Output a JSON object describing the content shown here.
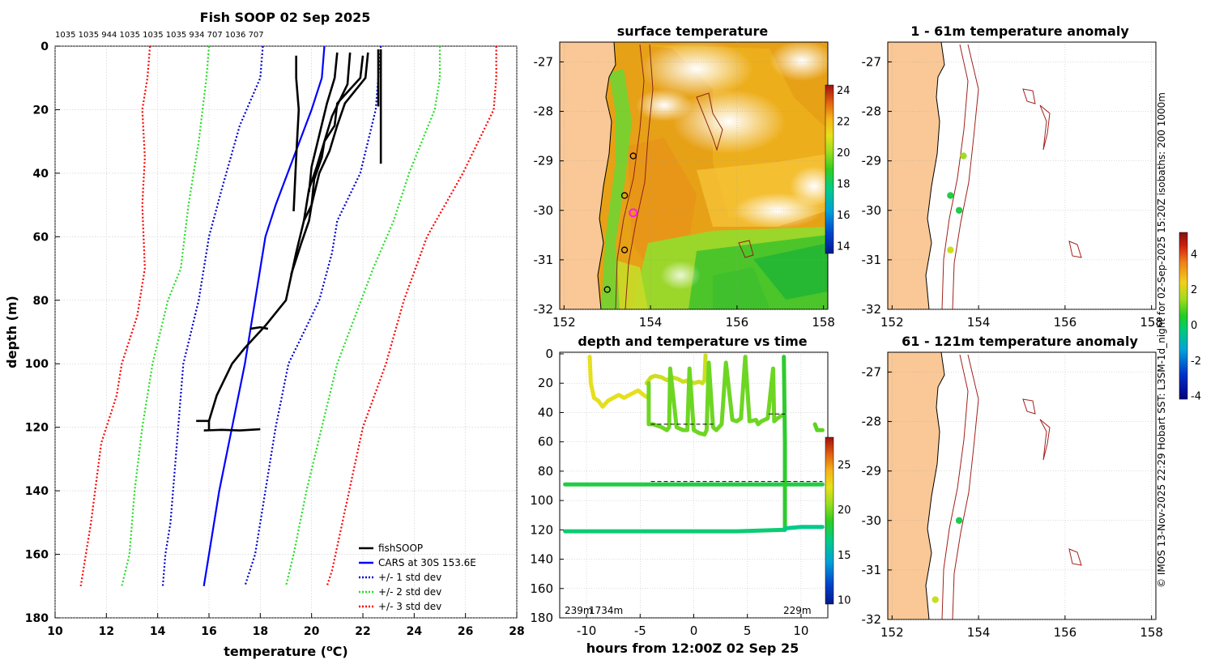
{
  "figure": {
    "credit": "© IMOS 13-Nov-2025 22:29 Hobart SST: L3SM-1d_night for 02-Sep-2025 15:20Z isobaths: 200  1000m"
  },
  "colors": {
    "profile": "#000000",
    "cars": "#0000ff",
    "std1": "#0000cc",
    "std2": "#22dd22",
    "std3": "#ff0000",
    "land": "#f9c896",
    "track": "#a0201a"
  },
  "chart_data": [
    {
      "id": "profile",
      "type": "line",
      "title": "Fish SOOP 02 Sep 2025",
      "top_labels": "1035 1035 944 1035 1035 1035 934 707 1036 707",
      "xlabel": "temperature (",
      "xlabel_unit": "o",
      "xlabel_end": "C)",
      "ylabel": "depth (m)",
      "xlim": [
        10,
        28
      ],
      "ylim": [
        180,
        0
      ],
      "xticks": [
        "10",
        "12",
        "14",
        "16",
        "18",
        "20",
        "22",
        "24",
        "26",
        "28"
      ],
      "yticks": [
        "0",
        "20",
        "40",
        "60",
        "80",
        "100",
        "120",
        "140",
        "160",
        "180"
      ],
      "legend": [
        {
          "label": "fishSOOP",
          "color": "#000000",
          "style": "solid"
        },
        {
          "label": "CARS at 30S 153.6E",
          "color": "#0000ff",
          "style": "solid"
        },
        {
          "label": "+/- 1 std dev",
          "color": "#0000cc",
          "style": "dotted"
        },
        {
          "label": "+/- 2 std dev",
          "color": "#22dd22",
          "style": "dotted"
        },
        {
          "label": "+/- 3 std dev",
          "color": "#ff0000",
          "style": "dotted"
        }
      ],
      "series": [
        {
          "name": "CARS at 30S 153.6E",
          "color": "#0000ff",
          "style": "solid",
          "x": [
            20.5,
            20.4,
            20.0,
            19.3,
            18.6,
            18.2,
            18.0,
            17.8,
            17.4,
            16.9,
            16.4,
            16.0,
            15.8
          ],
          "y": [
            0,
            10,
            20,
            35,
            50,
            60,
            70,
            80,
            100,
            120,
            140,
            160,
            170
          ]
        },
        {
          "name": "-1 std",
          "color": "#0000cc",
          "style": "dotted",
          "x": [
            18.1,
            18.0,
            17.2,
            16.5,
            16.0,
            15.6,
            15.0,
            14.8,
            14.6,
            14.5,
            14.3,
            14.2
          ],
          "y": [
            0,
            10,
            25,
            45,
            60,
            80,
            100,
            120,
            140,
            150,
            160,
            170
          ]
        },
        {
          "name": "+1 std",
          "color": "#0000cc",
          "style": "dotted",
          "x": [
            22.7,
            22.6,
            22.5,
            21.9,
            21.0,
            20.8,
            20.3,
            19.7,
            19.1,
            18.6,
            18.2,
            17.8,
            17.4
          ],
          "y": [
            0,
            10,
            20,
            40,
            55,
            65,
            80,
            90,
            100,
            120,
            140,
            160,
            170
          ]
        },
        {
          "name": "-2 std",
          "color": "#22dd22",
          "style": "dotted",
          "x": [
            16.0,
            15.9,
            15.6,
            15.2,
            14.9,
            14.4,
            13.8,
            13.4,
            13.1,
            12.9,
            12.6
          ],
          "y": [
            0,
            10,
            30,
            50,
            70,
            80,
            100,
            120,
            140,
            160,
            170
          ]
        },
        {
          "name": "+2 std",
          "color": "#22dd22",
          "style": "dotted",
          "x": [
            25.0,
            25.0,
            24.8,
            23.8,
            23.2,
            22.4,
            21.7,
            21.0,
            20.4,
            19.8,
            19.3,
            19.0
          ],
          "y": [
            0,
            10,
            20,
            40,
            55,
            70,
            85,
            100,
            120,
            140,
            160,
            170
          ]
        },
        {
          "name": "-3 std",
          "color": "#ff0000",
          "style": "dotted",
          "x": [
            13.7,
            13.6,
            13.4,
            13.5,
            13.4,
            13.5,
            13.2,
            12.6,
            12.4,
            11.8,
            11.4,
            11.0
          ],
          "y": [
            0,
            10,
            20,
            35,
            50,
            70,
            85,
            100,
            110,
            125,
            150,
            170
          ]
        },
        {
          "name": "+3 std",
          "color": "#ff0000",
          "style": "dotted",
          "x": [
            27.2,
            27.2,
            27.1,
            25.9,
            24.5,
            23.6,
            22.9,
            22.0,
            21.2,
            20.8,
            20.6
          ],
          "y": [
            0,
            10,
            20,
            40,
            60,
            80,
            100,
            120,
            150,
            165,
            170
          ]
        },
        {
          "name": "fishSOOP",
          "color": "#000000",
          "style": "solid",
          "x": [
            22.0,
            21.9,
            21.0,
            20.9,
            20.5,
            20.4,
            20.1,
            20.0,
            19.7,
            19.4,
            19.0,
            18.2,
            17.4,
            16.9,
            16.3,
            16.0,
            16.0
          ],
          "y": [
            3,
            10,
            18,
            25,
            30,
            35,
            42,
            50,
            55,
            65,
            80,
            88,
            95,
            100,
            110,
            118,
            121
          ]
        },
        {
          "name": "fishSOOP",
          "color": "#000000",
          "style": "solid",
          "x": [
            22.2,
            22.1,
            21.3,
            21.0,
            20.7,
            20.3,
            20.0,
            19.9,
            19.6,
            19.2
          ],
          "y": [
            2,
            10,
            18,
            25,
            33,
            40,
            50,
            55,
            62,
            72
          ]
        },
        {
          "name": "fishSOOP",
          "color": "#000000",
          "style": "solid",
          "x": [
            21.5,
            21.4,
            20.8,
            20.5,
            20.2,
            19.9,
            19.7
          ],
          "y": [
            2,
            12,
            22,
            30,
            38,
            45,
            55
          ]
        },
        {
          "name": "fishSOOP",
          "color": "#000000",
          "style": "solid",
          "x": [
            21.0,
            20.9,
            20.6,
            20.3,
            20.0,
            19.9
          ],
          "y": [
            2,
            10,
            18,
            28,
            38,
            46
          ]
        },
        {
          "name": "fishSOOP",
          "color": "#000000",
          "style": "solid",
          "x": [
            19.4,
            19.4,
            19.5,
            19.4,
            19.3
          ],
          "y": [
            3,
            10,
            20,
            35,
            52
          ]
        },
        {
          "name": "fishSOOP",
          "color": "#000000",
          "style": "solid",
          "x": [
            22.7,
            22.7,
            22.7,
            22.7
          ],
          "y": [
            1,
            10,
            25,
            37
          ]
        },
        {
          "name": "fishSOOP",
          "color": "#000000",
          "style": "solid",
          "x": [
            22.6,
            22.6,
            22.6
          ],
          "y": [
            1,
            10,
            19
          ]
        },
        {
          "name": "fishSOOP",
          "color": "#000000",
          "style": "solid",
          "x": [
            15.8,
            16.5,
            17.2,
            18.0
          ],
          "y": [
            121,
            120.8,
            121,
            120.6
          ]
        },
        {
          "name": "fishSOOP",
          "color": "#000000",
          "style": "solid",
          "x": [
            17.6,
            18.0,
            18.3
          ],
          "y": [
            89,
            88.5,
            89
          ]
        },
        {
          "name": "fishSOOP",
          "color": "#000000",
          "style": "solid",
          "x": [
            15.5,
            16.0
          ],
          "y": [
            118,
            118
          ]
        }
      ]
    },
    {
      "id": "sst",
      "type": "heatmap",
      "title": "surface temperature",
      "xlim": [
        151.9,
        158.1
      ],
      "ylim": [
        -32,
        -26.6
      ],
      "xticks": [
        "152",
        "154",
        "156",
        "158"
      ],
      "yticks": [
        "-27",
        "-28",
        "-29",
        "-30",
        "-31",
        "-32"
      ],
      "colorbar": {
        "min": 13.5,
        "max": 24.3,
        "ticks": [
          "14",
          "16",
          "18",
          "20",
          "22",
          "24"
        ]
      },
      "stations": [
        [
          153.6,
          -28.9
        ],
        [
          153.4,
          -29.7
        ],
        [
          153.4,
          -30.8
        ],
        [
          153.0,
          -31.6
        ]
      ],
      "current_position": [
        153.6,
        -30.05
      ]
    },
    {
      "id": "anom1",
      "type": "scatter",
      "title": "1 - 61m temperature anomaly",
      "xlim": [
        151.9,
        158.1
      ],
      "ylim": [
        -32,
        -26.6
      ],
      "xticks": [
        "152",
        "154",
        "156",
        "158"
      ],
      "yticks": [
        "-27",
        "-28",
        "-29",
        "-30",
        "-31",
        "-32"
      ],
      "points": [
        {
          "x": 153.65,
          "y": -28.9,
          "value": 1.5
        },
        {
          "x": 153.35,
          "y": -29.7,
          "value": 0.1
        },
        {
          "x": 153.55,
          "y": -30.0,
          "value": 0.1
        },
        {
          "x": 153.35,
          "y": -30.8,
          "value": 2.0
        }
      ],
      "colorbar": {
        "min": -4.2,
        "max": 5.2,
        "ticks": [
          "4",
          "2",
          "0",
          "-2",
          "-4"
        ]
      }
    },
    {
      "id": "anom2",
      "type": "scatter",
      "title": "61 - 121m temperature anomaly",
      "xlim": [
        151.9,
        158.1
      ],
      "ylim": [
        -32,
        -26.6
      ],
      "xticks": [
        "152",
        "154",
        "156",
        "158"
      ],
      "yticks": [
        "-27",
        "-28",
        "-29",
        "-30",
        "-31",
        "-32"
      ],
      "points": [
        {
          "x": 153.55,
          "y": -30.0,
          "value": 0.0
        },
        {
          "x": 153.0,
          "y": -31.6,
          "value": 2.0
        }
      ]
    },
    {
      "id": "timeplot",
      "type": "scatter",
      "title": "depth and temperature vs time",
      "xlabel": "hours from 12:00Z 02 Sep 25",
      "xlim": [
        -12.5,
        12.5
      ],
      "ylim": [
        180,
        0
      ],
      "xticks": [
        "-10",
        "-5",
        "0",
        "5",
        "10"
      ],
      "yticks": [
        "0",
        "20",
        "40",
        "60",
        "80",
        "100",
        "120",
        "140",
        "160",
        "180"
      ],
      "bottom_labels": {
        "left": "239m",
        "left2": "1734m",
        "right": "229m"
      },
      "colorbar": {
        "min": 9.5,
        "max": 28,
        "ticks": [
          "25",
          "20",
          "15",
          "10"
        ]
      },
      "reference_lines": [
        {
          "x": [
            -4.0,
            12.0
          ],
          "y": 87
        },
        {
          "x": [
            -4.0,
            2.0
          ],
          "y": 48
        },
        {
          "x": [
            7.0,
            8.5
          ],
          "y": 41
        }
      ],
      "tracks": [
        {
          "value": 22.5,
          "x": [
            -9.7,
            -9.6,
            -9.3,
            -8.9,
            -8.5,
            -8.0,
            -7.5,
            -7.0,
            -6.5,
            -6.0,
            -5.2,
            -4.5,
            -4.2
          ],
          "y": [
            2,
            20,
            30,
            32,
            36,
            32,
            30,
            28,
            30,
            28,
            25,
            29,
            30
          ]
        },
        {
          "value": 21.8,
          "x": [
            -4.4,
            -4.2,
            -4.0,
            -3.6,
            -3.0,
            -2.5,
            -2.0,
            -1.5,
            -1.0,
            -0.5,
            0.0,
            0.5,
            0.8,
            1.0,
            1.1
          ],
          "y": [
            20,
            18,
            16,
            15,
            16,
            18,
            16,
            17,
            19,
            18,
            20,
            19,
            20,
            18,
            1
          ]
        },
        {
          "value": 19.8,
          "x": [
            -4.2,
            -4.2,
            -3.8,
            -3.0,
            -2.5,
            -2.3,
            -2.2,
            -1.6,
            -1.0,
            -0.6,
            -0.4,
            0.0,
            0.5,
            1.0,
            1.2,
            1.4,
            1.8,
            2.1,
            2.6,
            3.0,
            3.6,
            4.0,
            4.4,
            4.8,
            5.2,
            5.8,
            6.0,
            6.3,
            6.9,
            7.4,
            7.5,
            7.8,
            8.2
          ],
          "y": [
            20,
            48,
            48,
            50,
            52,
            50,
            10,
            50,
            52,
            52,
            10,
            52,
            54,
            55,
            52,
            6,
            50,
            52,
            48,
            6,
            45,
            46,
            44,
            2,
            46,
            45,
            48,
            46,
            44,
            10,
            46,
            44,
            42
          ]
        },
        {
          "value": 18.0,
          "x": [
            -12.0,
            -8,
            -4,
            0,
            4,
            8,
            9,
            12.0
          ],
          "y": [
            89,
            89,
            89,
            89,
            89,
            89,
            89,
            89
          ]
        },
        {
          "value": 18.5,
          "x": [
            8.4,
            8.5,
            8.5
          ],
          "y": [
            2,
            60,
            120
          ]
        },
        {
          "value": 17.0,
          "x": [
            -12.0,
            -8,
            -4,
            0,
            4,
            8.2,
            8.5
          ],
          "y": [
            121,
            121,
            121,
            121,
            121,
            120,
            120
          ]
        },
        {
          "value": 16.4,
          "x": [
            8.5,
            10,
            12.0
          ],
          "y": [
            119,
            118,
            118
          ]
        },
        {
          "value": 19.5,
          "x": [
            11.3,
            11.5,
            12.0
          ],
          "y": [
            48,
            52,
            52
          ]
        }
      ]
    }
  ]
}
